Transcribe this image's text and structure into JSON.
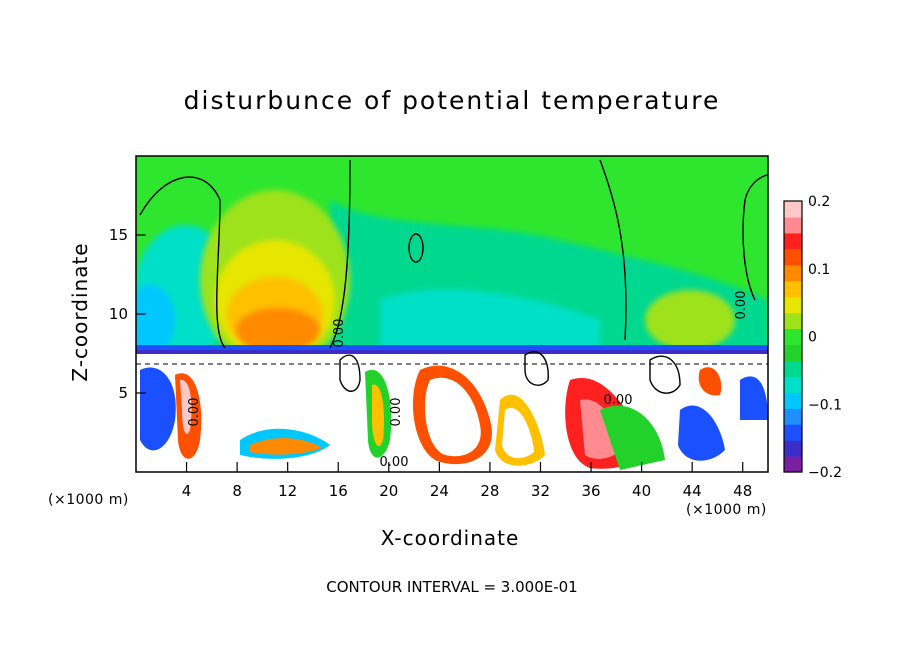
{
  "chart_data": {
    "type": "heatmap",
    "title": "disturbunce of potential temperature",
    "xlabel": "X-coordinate",
    "ylabel": "Z-coordinate",
    "x_unit_label": "(×1000 m)",
    "x_ticks": [
      4,
      8,
      12,
      16,
      20,
      24,
      28,
      32,
      36,
      40,
      44,
      48
    ],
    "y_ticks": [
      5,
      10,
      15
    ],
    "xlim": [
      0,
      50
    ],
    "ylim": [
      0,
      20
    ],
    "colorbar": {
      "ticks": [
        "0.2",
        "0.1",
        "0",
        "−0.1",
        "−0.2"
      ],
      "range": [
        -0.2,
        0.2
      ],
      "colors": [
        "#7a1fa2",
        "#3c2cc8",
        "#1a50ff",
        "#1f8fff",
        "#00c8ff",
        "#00e0c8",
        "#00d890",
        "#22d22a",
        "#2ee62e",
        "#9ee21a",
        "#e6e600",
        "#ffc000",
        "#ff8a00",
        "#ff5000",
        "#ff2020",
        "#ff8a90",
        "#ffc8c8"
      ]
    },
    "contour_labels": [
      "0.00",
      "0.00",
      "0.00",
      "0.00",
      "0.00",
      "0.00"
    ],
    "footer": "CONTOUR INTERVAL = 3.000E-01"
  }
}
